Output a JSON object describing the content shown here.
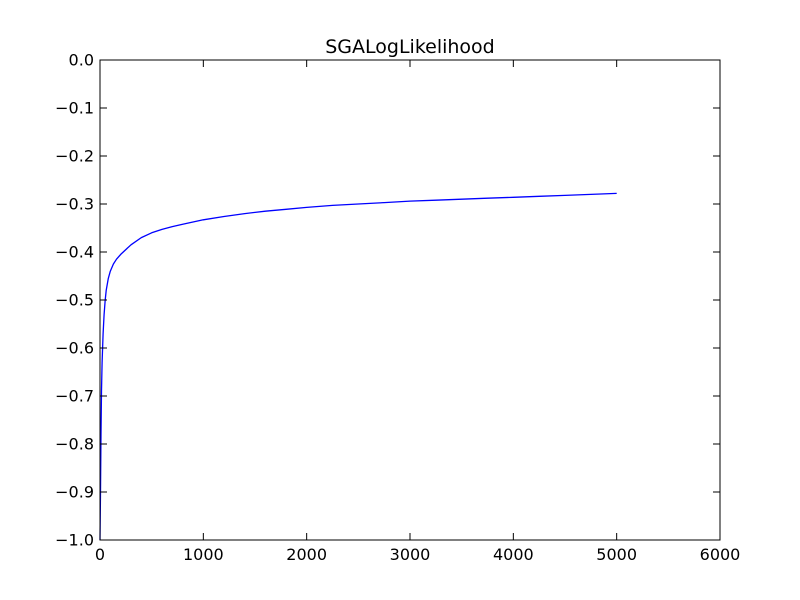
{
  "chart_data": {
    "type": "line",
    "title": "SGALogLikelihood",
    "xlabel": "",
    "ylabel": "",
    "xlim": [
      0,
      6000
    ],
    "ylim": [
      -1.0,
      0.0
    ],
    "xticks": [
      0,
      1000,
      2000,
      3000,
      4000,
      5000,
      6000
    ],
    "xtick_labels": [
      "0",
      "1000",
      "2000",
      "3000",
      "4000",
      "5000",
      "6000"
    ],
    "yticks": [
      0.0,
      -0.1,
      -0.2,
      -0.3,
      -0.4,
      -0.5,
      -0.6,
      -0.7,
      -0.8,
      -0.9,
      -1.0
    ],
    "ytick_labels": [
      "0.0",
      "−0.1",
      "−0.2",
      "−0.3",
      "−0.4",
      "−0.5",
      "−0.6",
      "−0.7",
      "−0.8",
      "−0.9",
      "−1.0"
    ],
    "grid": false,
    "legend": false,
    "series": [
      {
        "color": "#0000ff",
        "x": [
          0,
          5,
          10,
          15,
          20,
          30,
          40,
          50,
          60,
          80,
          100,
          130,
          160,
          200,
          250,
          300,
          400,
          500,
          600,
          700,
          800,
          1000,
          1200,
          1400,
          1600,
          1800,
          2000,
          2250,
          2500,
          2750,
          3000,
          3250,
          3500,
          3750,
          4000,
          4250,
          4500,
          4750,
          5000
        ],
        "y": [
          -1.0,
          -0.9,
          -0.78,
          -0.69,
          -0.63,
          -0.57,
          -0.53,
          -0.5,
          -0.48,
          -0.455,
          -0.44,
          -0.425,
          -0.415,
          -0.405,
          -0.395,
          -0.385,
          -0.37,
          -0.36,
          -0.353,
          -0.347,
          -0.342,
          -0.333,
          -0.326,
          -0.32,
          -0.315,
          -0.311,
          -0.307,
          -0.303,
          -0.3,
          -0.297,
          -0.294,
          -0.292,
          -0.29,
          -0.288,
          -0.286,
          -0.284,
          -0.282,
          -0.28,
          -0.278
        ]
      }
    ]
  }
}
